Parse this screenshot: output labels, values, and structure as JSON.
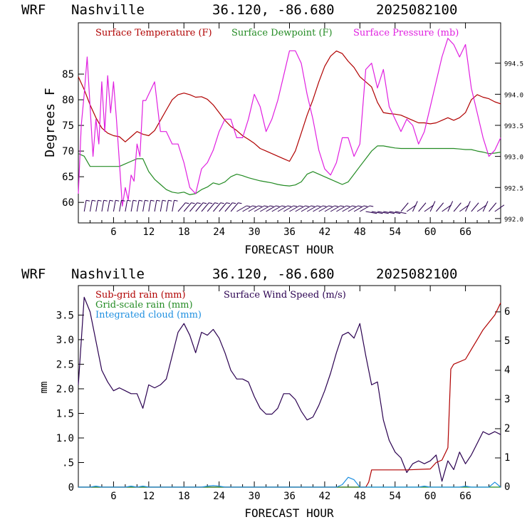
{
  "colors": {
    "temperature": "#b00000",
    "dewpoint": "#238b23",
    "pressure": "#e020e0",
    "subgrid_rain": "#b00000",
    "wind": "#2a0050",
    "gridscale_rain": "#238b23",
    "cloud": "#1e8fe0"
  },
  "chart_data": [
    {
      "type": "line",
      "title": {
        "model": "WRF",
        "location": "Nashville",
        "coords": "36.120, -86.680",
        "init": "2025082100"
      },
      "xlabel": "FORECAST HOUR",
      "ylabel": "Degrees F",
      "xlim": [
        0,
        72
      ],
      "ylim": [
        56,
        95
      ],
      "y2lim": [
        991.93,
        995.15
      ],
      "x_ticks": [
        "6",
        "12",
        "18",
        "24",
        "30",
        "36",
        "42",
        "48",
        "54",
        "60",
        "66"
      ],
      "y_ticks": [
        "60",
        "65",
        "70",
        "75",
        "80",
        "85"
      ],
      "y2_ticks": [
        "992.0",
        "992.5",
        "993.0",
        "993.5",
        "994.0",
        "994.5"
      ],
      "legend": {
        "placement": "top",
        "entries": [
          "Surface Temperature (F)",
          "Surface Dewpoint (F)",
          "Surface Pressure (mb)"
        ]
      },
      "series": [
        {
          "name": "Surface Temperature (F)",
          "axis": "left",
          "x": [
            0,
            1,
            2,
            3,
            4,
            5,
            6,
            7,
            8,
            9,
            10,
            11,
            12,
            13,
            14,
            15,
            16,
            17,
            18,
            19,
            20,
            21,
            22,
            23,
            24,
            25,
            26,
            27,
            28,
            29,
            30,
            31,
            32,
            33,
            34,
            35,
            36,
            37,
            38,
            39,
            40,
            41,
            42,
            43,
            44,
            45,
            46,
            47,
            48,
            49,
            50,
            51,
            52,
            53,
            54,
            55,
            56,
            57,
            58,
            59,
            60,
            61,
            62,
            63,
            64,
            65,
            66,
            67,
            68,
            69,
            70,
            71,
            72
          ],
          "values": [
            84.5,
            82,
            79,
            76.5,
            74.5,
            73.5,
            73,
            72.8,
            71.8,
            72.8,
            73.8,
            73.3,
            73,
            74,
            76,
            78,
            80,
            81,
            81.3,
            81,
            80.5,
            80.6,
            80.1,
            79,
            77.5,
            76,
            74.8,
            74,
            73,
            72.3,
            71.5,
            70.5,
            70,
            69.5,
            69,
            68.5,
            68,
            70,
            73.5,
            77,
            80,
            83.5,
            86.5,
            88.5,
            89.5,
            89,
            87.5,
            86.3,
            84.5,
            83.5,
            82.5,
            79.5,
            77.5,
            77.3,
            77.2,
            77,
            76.5,
            76,
            75.5,
            75.5,
            75.3,
            75.5,
            76,
            76.5,
            76,
            76.5,
            77.5,
            80,
            81,
            80.5,
            80.2,
            79.6,
            79.2
          ]
        },
        {
          "name": "Surface Dewpoint (F)",
          "axis": "left",
          "x": [
            0,
            1,
            2,
            3,
            4,
            5,
            6,
            7,
            8,
            9,
            10,
            11,
            12,
            13,
            14,
            15,
            16,
            17,
            18,
            19,
            20,
            21,
            22,
            23,
            24,
            25,
            26,
            27,
            28,
            29,
            30,
            31,
            32,
            33,
            34,
            35,
            36,
            37,
            38,
            39,
            40,
            41,
            42,
            43,
            44,
            45,
            46,
            47,
            48,
            49,
            50,
            51,
            52,
            53,
            54,
            55,
            56,
            57,
            58,
            59,
            60,
            61,
            62,
            63,
            64,
            65,
            66,
            67,
            68,
            69,
            70,
            71,
            72
          ],
          "values": [
            69.5,
            69,
            67,
            67,
            67,
            67,
            67,
            67,
            67.5,
            68,
            68.5,
            68.5,
            66,
            64.5,
            63.5,
            62.5,
            62,
            61.8,
            62,
            61.5,
            61.7,
            62.5,
            63,
            63.8,
            63.5,
            64,
            65,
            65.5,
            65.2,
            64.8,
            64.5,
            64.2,
            64,
            63.8,
            63.5,
            63.3,
            63.2,
            63.4,
            64,
            65.5,
            66,
            65.5,
            65,
            64.5,
            64,
            63.5,
            64,
            65.5,
            67,
            68.5,
            70,
            71,
            71,
            70.8,
            70.6,
            70.5,
            70.5,
            70.5,
            70.5,
            70.5,
            70.5,
            70.5,
            70.5,
            70.5,
            70.5,
            70.4,
            70.3,
            70.3,
            70,
            69.8,
            69.5,
            69.6,
            69.8
          ]
        },
        {
          "name": "Surface Pressure (mb)",
          "axis": "right",
          "x": [
            0,
            0.5,
            1,
            1.5,
            2,
            2.5,
            3,
            3.5,
            4,
            4.5,
            5,
            5.5,
            6,
            6.5,
            7,
            7.5,
            8,
            8.5,
            9,
            9.5,
            10,
            10.5,
            11,
            11.5,
            12,
            13,
            14,
            15,
            16,
            17,
            18,
            19,
            20,
            21,
            22,
            23,
            24,
            25,
            26,
            27,
            28,
            29,
            30,
            31,
            32,
            33,
            34,
            35,
            36,
            37,
            38,
            39,
            40,
            41,
            42,
            43,
            44,
            45,
            46,
            47,
            48,
            49,
            50,
            51,
            52,
            53,
            54,
            55,
            56,
            57,
            58,
            59,
            60,
            61,
            62,
            63,
            64,
            65,
            66,
            67,
            68,
            69,
            70,
            71,
            72
          ],
          "values": [
            992.4,
            993.5,
            994.0,
            994.6,
            993.8,
            993.0,
            993.6,
            993.2,
            994.2,
            993.4,
            994.3,
            993.7,
            994.2,
            993.6,
            992.9,
            992.2,
            992.5,
            992.3,
            992.7,
            992.6,
            993.2,
            993.0,
            993.9,
            993.9,
            994.0,
            994.2,
            993.4,
            993.4,
            993.2,
            993.2,
            992.9,
            992.5,
            992.4,
            992.8,
            992.9,
            993.1,
            993.4,
            993.6,
            993.6,
            993.3,
            993.3,
            993.6,
            994.0,
            993.8,
            993.4,
            993.6,
            993.9,
            994.3,
            994.7,
            994.7,
            994.5,
            994.0,
            993.6,
            993.1,
            992.8,
            992.7,
            992.9,
            993.3,
            993.3,
            993.0,
            993.2,
            994.4,
            994.5,
            994.1,
            994.4,
            993.8,
            993.6,
            993.4,
            993.6,
            993.5,
            993.2,
            993.4,
            993.8,
            994.2,
            994.6,
            994.9,
            994.8,
            994.6,
            994.8,
            994.1,
            993.7,
            993.3,
            993.0,
            993.1,
            993.3
          ]
        }
      ],
      "wind_barbs_note": "wind barbs along bottom of panel"
    },
    {
      "type": "line",
      "title": {
        "model": "WRF",
        "location": "Nashville",
        "coords": "36.120, -86.680",
        "init": "2025082100"
      },
      "xlabel": "FORECAST HOUR",
      "ylabel": "mm",
      "xlim": [
        0,
        72
      ],
      "ylim": [
        0,
        4.1
      ],
      "y2lim": [
        0,
        6.9
      ],
      "x_ticks": [
        "6",
        "12",
        "18",
        "24",
        "30",
        "36",
        "42",
        "48",
        "54",
        "60",
        "66"
      ],
      "y_ticks": [
        "0",
        ".5",
        "1.0",
        "1.5",
        "2.0",
        "2.5",
        "3.0",
        "3.5"
      ],
      "y2_ticks": [
        "0",
        "1",
        "2",
        "3",
        "4",
        "5",
        "6"
      ],
      "legend": {
        "placement": "top-left",
        "entries": [
          "Sub-grid rain (mm)",
          "Grid-scale rain (mm)",
          "Integrated cloud (mm)",
          "Surface Wind Speed (m/s)"
        ]
      },
      "series": [
        {
          "name": "Surface Wind Speed (m/s)",
          "axis": "right",
          "x": [
            0,
            1,
            2,
            3,
            4,
            5,
            6,
            7,
            8,
            9,
            10,
            11,
            12,
            13,
            14,
            15,
            16,
            17,
            18,
            19,
            20,
            21,
            22,
            23,
            24,
            25,
            26,
            27,
            28,
            29,
            30,
            31,
            32,
            33,
            34,
            35,
            36,
            37,
            38,
            39,
            40,
            41,
            42,
            43,
            44,
            45,
            46,
            47,
            48,
            49,
            50,
            51,
            52,
            53,
            54,
            55,
            56,
            57,
            58,
            59,
            60,
            61,
            62,
            63,
            64,
            65,
            66,
            67,
            68,
            69,
            70,
            71,
            72
          ],
          "values": [
            3.5,
            6.5,
            6.0,
            5.0,
            4.0,
            3.6,
            3.3,
            3.4,
            3.3,
            3.2,
            3.2,
            2.7,
            3.5,
            3.4,
            3.5,
            3.7,
            4.5,
            5.3,
            5.6,
            5.2,
            4.6,
            5.3,
            5.2,
            5.4,
            5.1,
            4.6,
            4.0,
            3.7,
            3.7,
            3.6,
            3.1,
            2.7,
            2.5,
            2.5,
            2.7,
            3.2,
            3.2,
            3.0,
            2.6,
            2.3,
            2.4,
            2.8,
            3.3,
            3.9,
            4.6,
            5.2,
            5.3,
            5.1,
            5.6,
            4.5,
            3.5,
            3.6,
            2.3,
            1.6,
            1.2,
            1.0,
            0.5,
            0.8,
            0.9,
            0.8,
            0.9,
            1.1,
            0.2,
            0.9,
            0.6,
            1.2,
            0.8,
            1.1,
            1.5,
            1.9,
            1.8,
            1.9,
            1.8
          ]
        },
        {
          "name": "Sub-grid rain (mm)",
          "axis": "left",
          "x": [
            0,
            49,
            49.5,
            50,
            56,
            60,
            61,
            62,
            63,
            63.5,
            64,
            66,
            67,
            68,
            69,
            70,
            71,
            72
          ],
          "values": [
            0,
            0,
            0.1,
            0.35,
            0.35,
            0.37,
            0.5,
            0.55,
            0.8,
            2.4,
            2.5,
            2.6,
            2.8,
            3.0,
            3.2,
            3.35,
            3.5,
            3.75
          ]
        },
        {
          "name": "Grid-scale rain (mm)",
          "axis": "left",
          "x": [
            0,
            72
          ],
          "values": [
            0,
            0
          ]
        },
        {
          "name": "Integrated cloud (mm)",
          "axis": "left",
          "x": [
            0,
            2,
            3,
            4,
            6,
            8,
            9,
            10,
            11,
            12,
            20,
            21,
            22,
            23,
            24,
            25,
            30,
            36,
            42,
            44,
            45,
            46,
            47,
            48,
            58,
            59,
            60,
            64,
            65,
            66,
            67,
            68,
            69,
            70,
            71,
            72
          ],
          "values": [
            0,
            0,
            0.02,
            0,
            0,
            0,
            0.02,
            0,
            0.02,
            0,
            0,
            0,
            0.02,
            0.03,
            0.02,
            0,
            0,
            0,
            0,
            0,
            0.05,
            0.2,
            0.15,
            0,
            0,
            0.02,
            0,
            0,
            0,
            0.02,
            0,
            0,
            0,
            0,
            0.1,
            0
          ]
        }
      ]
    }
  ]
}
